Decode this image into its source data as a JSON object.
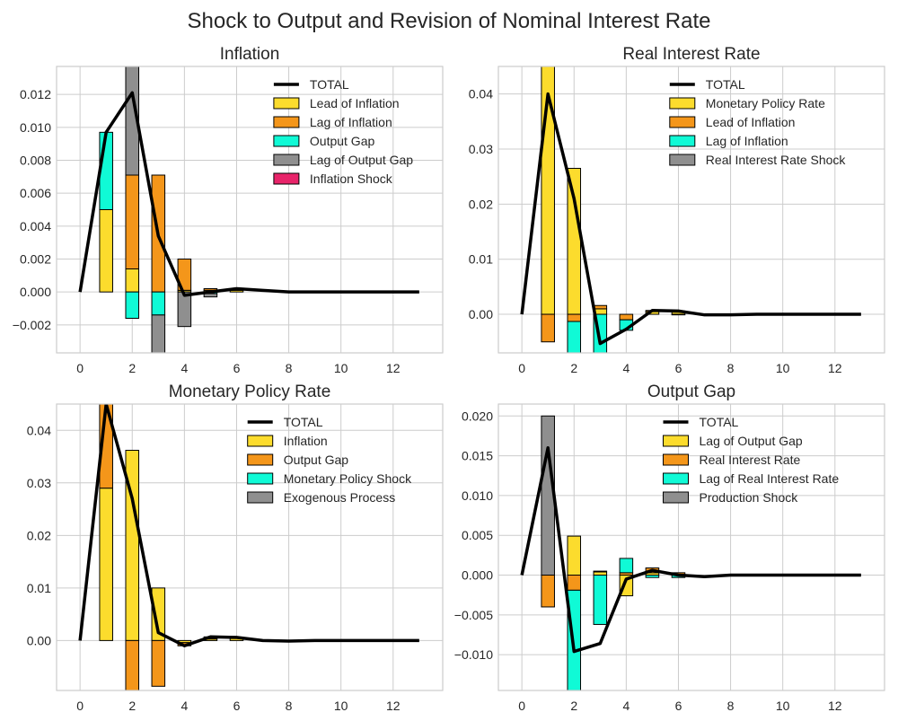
{
  "figure_title": "Shock to Output and Revision of Nominal Interest Rate",
  "colors": {
    "total_line": "#000000",
    "grid": "#cccccc",
    "component_1": "#fcdc2d",
    "component_2": "#f4961a",
    "component_3": "#10fad6",
    "component_4": "#8f8f8f",
    "component_5": "#e8246a"
  },
  "chart_data": [
    {
      "type": "bar",
      "title": "Inflation",
      "xticks": [
        0,
        2,
        4,
        6,
        8,
        10,
        12
      ],
      "yticks": [
        -0.002,
        0.0,
        0.002,
        0.004,
        0.006,
        0.008,
        0.01,
        0.012
      ],
      "ytick_labels": [
        "−0.002",
        "0.000",
        "0.002",
        "0.004",
        "0.006",
        "0.008",
        "0.010",
        "0.012"
      ],
      "xlim": [
        -0.9,
        13.9
      ],
      "ylim": [
        -0.0037,
        0.0137
      ],
      "grid": true,
      "legend_position": "upper-right",
      "x": [
        0,
        1,
        2,
        3,
        4,
        5,
        6,
        7,
        8,
        9,
        10,
        11,
        12,
        13
      ],
      "total": {
        "name": "TOTAL",
        "values": [
          0,
          0.0097,
          0.0121,
          0.0034,
          -0.0002,
          0.0,
          0.0002,
          0.0001,
          0.0,
          0.0,
          0.0,
          0.0,
          0.0,
          0.0
        ]
      },
      "series": [
        {
          "name": "Lead of Inflation",
          "values": [
            0,
            0.005,
            0.0014,
            0.0,
            0.0001,
            0.0001,
            0.0001,
            0.0,
            0,
            0,
            0,
            0,
            0,
            0
          ]
        },
        {
          "name": "Lag of Inflation",
          "values": [
            0,
            0.0,
            0.0057,
            0.0071,
            0.0019,
            0.0001,
            0.0001,
            0.0,
            0,
            0,
            0,
            0,
            0,
            0
          ]
        },
        {
          "name": "Output Gap",
          "values": [
            0,
            0.0047,
            -0.0016,
            -0.0014,
            0.0,
            -0.0001,
            0.0,
            0.0,
            0,
            0,
            0,
            0,
            0,
            0
          ]
        },
        {
          "name": "Lag of Output Gap",
          "values": [
            0,
            0.0,
            0.0067,
            -0.0031,
            -0.0021,
            -0.0002,
            0.0,
            0.0,
            0,
            0,
            0,
            0,
            0,
            0
          ]
        },
        {
          "name": "Inflation Shock",
          "values": [
            0,
            0,
            0,
            0,
            0,
            0,
            0,
            0,
            0,
            0,
            0,
            0,
            0,
            0
          ]
        }
      ]
    },
    {
      "type": "bar",
      "title": "Real Interest Rate",
      "xticks": [
        0,
        2,
        4,
        6,
        8,
        10,
        12
      ],
      "yticks": [
        0.0,
        0.01,
        0.02,
        0.03,
        0.04
      ],
      "ytick_labels": [
        "0.00",
        "0.01",
        "0.02",
        "0.03",
        "0.04"
      ],
      "xlim": [
        -0.9,
        13.9
      ],
      "ylim": [
        -0.007,
        0.045
      ],
      "grid": true,
      "legend_position": "upper-right",
      "x": [
        0,
        1,
        2,
        3,
        4,
        5,
        6,
        7,
        8,
        9,
        10,
        11,
        12,
        13
      ],
      "total": {
        "name": "TOTAL",
        "values": [
          0,
          0.04,
          0.021,
          -0.0053,
          -0.0027,
          0.0007,
          0.0006,
          -0.0001,
          -0.0001,
          0.0,
          0.0,
          0.0,
          0.0,
          0.0
        ]
      },
      "series": [
        {
          "name": "Monetary Policy Rate",
          "values": [
            0,
            0.045,
            0.0265,
            0.001,
            0.0,
            0.0005,
            0.0004,
            0.0,
            0,
            0,
            0,
            0,
            0,
            0
          ]
        },
        {
          "name": "Lead of Inflation",
          "values": [
            0,
            -0.005,
            -0.0013,
            0.0006,
            -0.001,
            0.0002,
            0.0002,
            0.0,
            0,
            0,
            0,
            0,
            0,
            0
          ]
        },
        {
          "name": "Lag of Inflation",
          "values": [
            0,
            0.0,
            -0.0057,
            -0.0071,
            -0.0019,
            0.0,
            -0.0001,
            0.0,
            0,
            0,
            0,
            0,
            0,
            0
          ]
        },
        {
          "name": "Real Interest Rate Shock",
          "values": [
            0,
            0,
            0,
            0,
            0,
            0,
            0,
            0,
            0,
            0,
            0,
            0,
            0,
            0
          ]
        }
      ]
    },
    {
      "type": "bar",
      "title": "Monetary Policy Rate",
      "xticks": [
        0,
        2,
        4,
        6,
        8,
        10,
        12
      ],
      "yticks": [
        0.0,
        0.01,
        0.02,
        0.03,
        0.04
      ],
      "ytick_labels": [
        "0.00",
        "0.01",
        "0.02",
        "0.03",
        "0.04"
      ],
      "xlim": [
        -0.9,
        13.9
      ],
      "ylim": [
        -0.0095,
        0.045
      ],
      "grid": true,
      "legend_position": "upper-right",
      "x": [
        0,
        1,
        2,
        3,
        4,
        5,
        6,
        7,
        8,
        9,
        10,
        11,
        12,
        13
      ],
      "total": {
        "name": "TOTAL",
        "values": [
          0,
          0.045,
          0.027,
          0.0015,
          -0.001,
          0.0007,
          0.0006,
          0.0,
          -0.0001,
          0.0,
          0.0,
          0.0,
          0.0,
          0.0
        ]
      },
      "series": [
        {
          "name": "Inflation",
          "values": [
            0,
            0.029,
            0.0362,
            0.01,
            -0.0004,
            0.0003,
            0.0004,
            0.0,
            0,
            0,
            0,
            0,
            0,
            0
          ]
        },
        {
          "name": "Output Gap",
          "values": [
            0,
            0.016,
            -0.0095,
            -0.0087,
            -0.0006,
            0.0004,
            0.0002,
            0.0,
            0,
            0,
            0,
            0,
            0,
            0
          ]
        },
        {
          "name": "Monetary Policy Shock",
          "values": [
            0,
            0,
            0,
            0,
            0,
            0,
            0,
            0,
            0,
            0,
            0,
            0,
            0,
            0
          ]
        },
        {
          "name": "Exogenous Process",
          "values": [
            0,
            0,
            0,
            0,
            0,
            0,
            0,
            0,
            0,
            0,
            0,
            0,
            0,
            0
          ]
        }
      ]
    },
    {
      "type": "bar",
      "title": "Output Gap",
      "xticks": [
        0,
        2,
        4,
        6,
        8,
        10,
        12
      ],
      "yticks": [
        -0.01,
        -0.005,
        0.0,
        0.005,
        0.01,
        0.015,
        0.02
      ],
      "ytick_labels": [
        "−0.010",
        "−0.005",
        "0.000",
        "0.005",
        "0.010",
        "0.015",
        "0.020"
      ],
      "xlim": [
        -0.9,
        13.9
      ],
      "ylim": [
        -0.0145,
        0.0215
      ],
      "grid": true,
      "legend_position": "upper-right",
      "x": [
        0,
        1,
        2,
        3,
        4,
        5,
        6,
        7,
        8,
        9,
        10,
        11,
        12,
        13
      ],
      "total": {
        "name": "TOTAL",
        "values": [
          0,
          0.016,
          -0.0096,
          -0.0086,
          -0.0005,
          0.0006,
          0.0,
          -0.0002,
          0.0,
          0.0,
          0.0,
          0.0,
          0.0,
          0.0
        ]
      },
      "series": [
        {
          "name": "Lag of Output Gap",
          "values": [
            0,
            0.0,
            0.0049,
            0.0004,
            -0.0026,
            0.0003,
            0.0001,
            0.0,
            0,
            0,
            0,
            0,
            0,
            0
          ]
        },
        {
          "name": "Real Interest Rate",
          "values": [
            0,
            -0.004,
            -0.0019,
            0.0001,
            0.0003,
            0.0006,
            0.0002,
            0.0,
            0,
            0,
            0,
            0,
            0,
            0
          ]
        },
        {
          "name": "Lag of Real Interest Rate",
          "values": [
            0,
            0.0,
            -0.0145,
            -0.0062,
            0.0018,
            -0.0003,
            -0.0003,
            0.0,
            0,
            0,
            0,
            0,
            0,
            0
          ]
        },
        {
          "name": "Production Shock",
          "values": [
            0,
            0.02,
            0.0,
            0.0,
            0.0,
            0.0,
            0.0,
            0.0,
            0,
            0,
            0,
            0,
            0,
            0
          ]
        }
      ]
    }
  ]
}
